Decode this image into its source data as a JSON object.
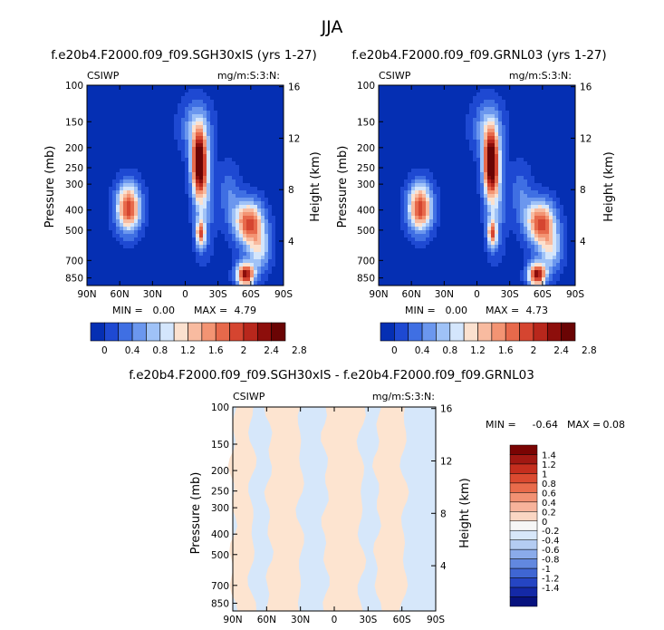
{
  "figure_title": "JJA",
  "colors": {
    "positive": [
      "#fad6c3",
      "#f7b39b",
      "#f29173",
      "#e96b4b",
      "#db4a30",
      "#c52e1e",
      "#a11812",
      "#7a0403"
    ],
    "zero": "#f6f6f6",
    "negative": [
      "#d7e7fa",
      "#b4ccf2",
      "#8aabea",
      "#6288df",
      "#3f66d3",
      "#2545c3",
      "#1429a6",
      "#07127e"
    ],
    "field": [
      "#052fb3",
      "#1e49d2",
      "#3f6fe3",
      "#6b97ee",
      "#9fc2f7",
      "#d4e6fc",
      "#fbe1cf",
      "#f8bba0",
      "#f39473",
      "#e7694b",
      "#d54530",
      "#b8271c",
      "#8d0e0b",
      "#6a0404"
    ],
    "diff_pos": "#fde4d0",
    "diff_neg": "#d6e7fa"
  },
  "chart_data": [
    {
      "type": "heatmap",
      "title": "f.e20b4.F2000.f09_f09.SGH30xIS (yrs 1-27)",
      "variable": "CSIWP",
      "units": "mg/m:S:3:N:",
      "xlabel": "",
      "ylabel": "Pressure (mb)",
      "ylabel_right": "Height (km)",
      "x_ticks": [
        "90N",
        "60N",
        "30N",
        "0",
        "30S",
        "60S",
        "90S"
      ],
      "y_ticks": [
        "100",
        "150",
        "200",
        "250",
        "300",
        "400",
        "500",
        "700",
        "850"
      ],
      "y_right_ticks": [
        "16",
        "12",
        "8",
        "4"
      ],
      "min_label": "MIN =",
      "min": "0.00",
      "max_label": "MAX =",
      "max": "4.79",
      "colorbar_labels": [
        "0",
        "0.4",
        "0.8",
        "1.2",
        "1.6",
        "2",
        "2.4",
        "2.8"
      ],
      "colorbar_range": [
        0,
        2.8
      ],
      "blobs": [
        {
          "lat": -13,
          "p": 240,
          "value": 3.0,
          "wlat": 7,
          "wp": 0.34
        },
        {
          "lat": -17,
          "p": 380,
          "value": 0.7,
          "wlat": 9,
          "wp": 0.5
        },
        {
          "lat": -14,
          "p": 520,
          "value": 1.8,
          "wlat": 4,
          "wp": 0.14
        },
        {
          "lat": 52,
          "p": 390,
          "value": 2.2,
          "wlat": 11,
          "wp": 0.26
        },
        {
          "lat": -58,
          "p": 460,
          "value": 2.1,
          "wlat": 13,
          "wp": 0.24
        },
        {
          "lat": -55,
          "p": 820,
          "value": 2.6,
          "wlat": 8,
          "wp": 0.13
        },
        {
          "lat": -68,
          "p": 620,
          "value": 1.0,
          "wlat": 10,
          "wp": 0.25
        },
        {
          "lat": -40,
          "p": 330,
          "value": 0.5,
          "wlat": 10,
          "wp": 0.3
        },
        {
          "lat": -10,
          "p": 160,
          "value": 0.8,
          "wlat": 14,
          "wp": 0.3
        }
      ]
    },
    {
      "type": "heatmap",
      "title": "f.e20b4.F2000.f09_f09.GRNL03 (yrs 1-27)",
      "variable": "CSIWP",
      "units": "mg/m:S:3:N:",
      "xlabel": "",
      "ylabel": "Pressure (mb)",
      "ylabel_right": "Height (km)",
      "x_ticks": [
        "90N",
        "60N",
        "30N",
        "0",
        "30S",
        "60S",
        "90S"
      ],
      "y_ticks": [
        "100",
        "150",
        "200",
        "250",
        "300",
        "400",
        "500",
        "700",
        "850"
      ],
      "y_right_ticks": [
        "16",
        "12",
        "8",
        "4"
      ],
      "min_label": "MIN =",
      "min": "0.00",
      "max_label": "MAX =",
      "max": "4.73",
      "colorbar_labels": [
        "0",
        "0.4",
        "0.8",
        "1.2",
        "1.6",
        "2",
        "2.4",
        "2.8"
      ],
      "colorbar_range": [
        0,
        2.8
      ],
      "blobs": [
        {
          "lat": -13,
          "p": 240,
          "value": 3.0,
          "wlat": 7,
          "wp": 0.34
        },
        {
          "lat": -17,
          "p": 380,
          "value": 0.7,
          "wlat": 9,
          "wp": 0.5
        },
        {
          "lat": -14,
          "p": 520,
          "value": 1.8,
          "wlat": 4,
          "wp": 0.14
        },
        {
          "lat": 52,
          "p": 390,
          "value": 2.2,
          "wlat": 11,
          "wp": 0.26
        },
        {
          "lat": -58,
          "p": 460,
          "value": 2.1,
          "wlat": 13,
          "wp": 0.24
        },
        {
          "lat": -55,
          "p": 820,
          "value": 2.6,
          "wlat": 8,
          "wp": 0.13
        },
        {
          "lat": -68,
          "p": 620,
          "value": 1.0,
          "wlat": 10,
          "wp": 0.25
        },
        {
          "lat": -40,
          "p": 330,
          "value": 0.5,
          "wlat": 10,
          "wp": 0.3
        },
        {
          "lat": -10,
          "p": 160,
          "value": 0.8,
          "wlat": 14,
          "wp": 0.3
        }
      ]
    },
    {
      "type": "heatmap",
      "title": "f.e20b4.F2000.f09_f09.SGH30xIS - f.e20b4.F2000.f09_f09.GRNL03",
      "variable": "CSIWP",
      "units": "mg/m:S:3:N:",
      "xlabel": "",
      "ylabel": "Pressure (mb)",
      "ylabel_right": "Height (km)",
      "x_ticks": [
        "90N",
        "60N",
        "30N",
        "0",
        "30S",
        "60S",
        "90S"
      ],
      "y_ticks": [
        "100",
        "150",
        "200",
        "250",
        "300",
        "400",
        "500",
        "700",
        "850"
      ],
      "y_right_ticks": [
        "16",
        "12",
        "8",
        "4"
      ],
      "min_label": "MIN =",
      "min": "-0.64",
      "max_label": "MAX =",
      "max": "0.08",
      "colorbar_labels": [
        "1.4",
        "1.2",
        "1",
        "0.8",
        "0.6",
        "0.4",
        "0.2",
        "0",
        "-0.2",
        "-0.4",
        "-0.6",
        "-0.8",
        "-1",
        "-1.2",
        "-1.4"
      ],
      "diff_bands": [
        {
          "from": -90,
          "to": -62,
          "sign": "neg"
        },
        {
          "from": -62,
          "to": -38,
          "sign": "pos"
        },
        {
          "from": -38,
          "to": -24,
          "sign": "neg"
        },
        {
          "from": -24,
          "to": 8,
          "sign": "pos"
        },
        {
          "from": 8,
          "to": 30,
          "sign": "neg"
        },
        {
          "from": 30,
          "to": 58,
          "sign": "pos"
        },
        {
          "from": 58,
          "to": 73,
          "sign": "neg"
        },
        {
          "from": 73,
          "to": 90,
          "sign": "pos"
        }
      ]
    }
  ]
}
